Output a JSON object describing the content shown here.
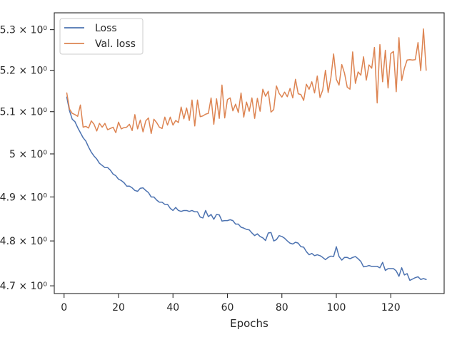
{
  "chart_data": {
    "type": "line",
    "title": "",
    "xlabel": "Epochs",
    "ylabel": "",
    "yscale": "log",
    "xlim": [
      -3.6,
      139.6
    ],
    "ylim": [
      4.683,
      5.342
    ],
    "xticks": [
      0,
      20,
      40,
      60,
      80,
      100,
      120
    ],
    "xtick_labels": [
      "0",
      "20",
      "40",
      "60",
      "80",
      "100",
      "120"
    ],
    "yticks": [
      4.7,
      4.8,
      4.9,
      5.0,
      5.1,
      5.2,
      5.3
    ],
    "ytick_labels": [
      "4.7 × 10⁰",
      "4.8 × 10⁰",
      "4.9 × 10⁰",
      "5 × 10⁰",
      "5.1 × 10⁰",
      "5.2 × 10⁰",
      "5.3 × 10⁰"
    ],
    "grid": false,
    "legend": "upper left",
    "x": [
      1,
      2,
      3,
      4,
      5,
      6,
      7,
      8,
      9,
      10,
      11,
      12,
      13,
      14,
      15,
      16,
      17,
      18,
      19,
      20,
      21,
      22,
      23,
      24,
      25,
      26,
      27,
      28,
      29,
      30,
      31,
      32,
      33,
      34,
      35,
      36,
      37,
      38,
      39,
      40,
      41,
      42,
      43,
      44,
      45,
      46,
      47,
      48,
      49,
      50,
      51,
      52,
      53,
      54,
      55,
      56,
      57,
      58,
      59,
      60,
      61,
      62,
      63,
      64,
      65,
      66,
      67,
      68,
      69,
      70,
      71,
      72,
      73,
      74,
      75,
      76,
      77,
      78,
      79,
      80,
      81,
      82,
      83,
      84,
      85,
      86,
      87,
      88,
      89,
      90,
      91,
      92,
      93,
      94,
      95,
      96,
      97,
      98,
      99,
      100,
      101,
      102,
      103,
      104,
      105,
      106,
      107,
      108,
      109,
      110,
      111,
      112,
      113,
      114,
      115,
      116,
      117,
      118,
      119,
      120,
      121,
      122,
      123,
      124,
      125,
      126,
      127,
      128,
      129,
      130,
      131,
      132,
      133
    ],
    "series": [
      {
        "name": "Loss",
        "color": "#4c72b0",
        "values": [
          5.135,
          5.102,
          5.082,
          5.076,
          5.062,
          5.05,
          5.038,
          5.03,
          5.016,
          5.004,
          4.995,
          4.988,
          4.978,
          4.973,
          4.968,
          4.968,
          4.962,
          4.953,
          4.949,
          4.941,
          4.938,
          4.933,
          4.925,
          4.925,
          4.921,
          4.915,
          4.913,
          4.92,
          4.921,
          4.915,
          4.91,
          4.9,
          4.9,
          4.893,
          4.888,
          4.888,
          4.883,
          4.883,
          4.874,
          4.869,
          4.876,
          4.869,
          4.867,
          4.869,
          4.869,
          4.867,
          4.869,
          4.866,
          4.866,
          4.854,
          4.852,
          4.869,
          4.855,
          4.86,
          4.849,
          4.86,
          4.859,
          4.845,
          4.846,
          4.846,
          4.848,
          4.846,
          4.838,
          4.838,
          4.831,
          4.829,
          4.826,
          4.825,
          4.818,
          4.812,
          4.816,
          4.81,
          4.807,
          4.801,
          4.818,
          4.819,
          4.8,
          4.803,
          4.812,
          4.81,
          4.806,
          4.8,
          4.795,
          4.793,
          4.797,
          4.795,
          4.787,
          4.786,
          4.776,
          4.769,
          4.772,
          4.767,
          4.769,
          4.767,
          4.763,
          4.758,
          4.763,
          4.766,
          4.765,
          4.787,
          4.765,
          4.757,
          4.763,
          4.763,
          4.76,
          4.763,
          4.765,
          4.76,
          4.754,
          4.742,
          4.743,
          4.745,
          4.743,
          4.743,
          4.743,
          4.74,
          4.752,
          4.734,
          4.738,
          4.738,
          4.738,
          4.733,
          4.721,
          4.74,
          4.724,
          4.727,
          4.712,
          4.715,
          4.718,
          4.72,
          4.714,
          4.716,
          4.714
        ]
      },
      {
        "name": "Val. loss",
        "color": "#dd8452",
        "values": [
          5.145,
          5.106,
          5.096,
          5.093,
          5.089,
          5.116,
          5.063,
          5.065,
          5.061,
          5.078,
          5.07,
          5.054,
          5.072,
          5.063,
          5.072,
          5.057,
          5.06,
          5.063,
          5.05,
          5.075,
          5.059,
          5.062,
          5.063,
          5.07,
          5.055,
          5.093,
          5.059,
          5.08,
          5.052,
          5.078,
          5.085,
          5.048,
          5.082,
          5.074,
          5.063,
          5.06,
          5.087,
          5.068,
          5.087,
          5.068,
          5.079,
          5.074,
          5.111,
          5.083,
          5.109,
          5.079,
          5.128,
          5.066,
          5.128,
          5.088,
          5.09,
          5.094,
          5.096,
          5.133,
          5.07,
          5.131,
          5.084,
          5.164,
          5.085,
          5.129,
          5.133,
          5.102,
          5.118,
          5.098,
          5.145,
          5.087,
          5.123,
          5.101,
          5.133,
          5.084,
          5.132,
          5.101,
          5.154,
          5.137,
          5.149,
          5.099,
          5.105,
          5.162,
          5.144,
          5.135,
          5.147,
          5.136,
          5.156,
          5.133,
          5.178,
          5.143,
          5.141,
          5.127,
          5.166,
          5.154,
          5.172,
          5.145,
          5.186,
          5.134,
          5.152,
          5.2,
          5.146,
          5.182,
          5.24,
          5.178,
          5.164,
          5.214,
          5.193,
          5.159,
          5.154,
          5.245,
          5.168,
          5.196,
          5.188,
          5.233,
          5.176,
          5.213,
          5.205,
          5.256,
          5.121,
          5.263,
          5.172,
          5.249,
          5.157,
          5.241,
          5.246,
          5.148,
          5.28,
          5.175,
          5.205,
          5.225,
          5.226,
          5.225,
          5.226,
          5.268,
          5.199,
          5.302,
          5.2
        ]
      }
    ]
  }
}
